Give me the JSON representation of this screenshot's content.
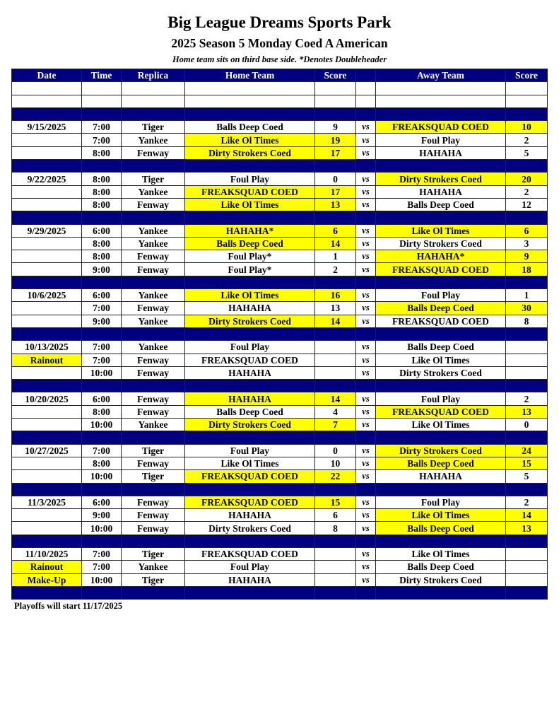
{
  "title": "Big League Dreams Sports Park",
  "subtitle": "2025 Season 5 Monday Coed A American",
  "note": "Home team sits on third base side.  *Denotes Doubleheader",
  "columns": [
    "Date",
    "Time",
    "Replica",
    "Home Team",
    "Score",
    "",
    "Away Team",
    "Score"
  ],
  "vs_label": "vs",
  "colors": {
    "header": "#000080",
    "highlight": "#ffff00"
  },
  "weeks": [
    {
      "games": [
        {
          "date": "9/15/2025",
          "time": "7:00",
          "field": "Tiger",
          "home": "Balls Deep Coed",
          "home_score": "9",
          "away": "FREAKSQUAD COED",
          "away_score": "10",
          "winner": "away"
        },
        {
          "date": "",
          "time": "7:00",
          "field": "Yankee",
          "home": "Like Ol Times",
          "home_score": "19",
          "away": "Foul Play",
          "away_score": "2",
          "winner": "home"
        },
        {
          "date": "",
          "time": "8:00",
          "field": "Fenway",
          "home": "Dirty Strokers Coed",
          "home_score": "17",
          "away": "HAHAHA",
          "away_score": "5",
          "winner": "home"
        }
      ]
    },
    {
      "games": [
        {
          "date": "9/22/2025",
          "time": "8:00",
          "field": "Tiger",
          "home": "Foul Play",
          "home_score": "0",
          "away": "Dirty Strokers Coed",
          "away_score": "20",
          "winner": "away"
        },
        {
          "date": "",
          "time": "8:00",
          "field": "Yankee",
          "home": "FREAKSQUAD COED",
          "home_score": "17",
          "away": "HAHAHA",
          "away_score": "2",
          "winner": "home"
        },
        {
          "date": "",
          "time": "8:00",
          "field": "Fenway",
          "home": "Like Ol Times",
          "home_score": "13",
          "away": "Balls Deep Coed",
          "away_score": "12",
          "winner": "home"
        }
      ]
    },
    {
      "games": [
        {
          "date": "9/29/2025",
          "time": "6:00",
          "field": "Yankee",
          "home": "HAHAHA*",
          "home_score": "6",
          "away": "Like Ol Times",
          "away_score": "6",
          "winner": "both"
        },
        {
          "date": "",
          "time": "8:00",
          "field": "Yankee",
          "home": "Balls Deep Coed",
          "home_score": "14",
          "away": "Dirty Strokers Coed",
          "away_score": "3",
          "winner": "home"
        },
        {
          "date": "",
          "time": "8:00",
          "field": "Fenway",
          "home": "Foul Play*",
          "home_score": "1",
          "away": "HAHAHA*",
          "away_score": "9",
          "winner": "away"
        },
        {
          "date": "",
          "time": "9:00",
          "field": "Fenway",
          "home": "Foul Play*",
          "home_score": "2",
          "away": "FREAKSQUAD COED",
          "away_score": "18",
          "winner": "away"
        }
      ]
    },
    {
      "games": [
        {
          "date": "10/6/2025",
          "time": "6:00",
          "field": "Yankee",
          "home": "Like Ol Times",
          "home_score": "16",
          "away": "Foul Play",
          "away_score": "1",
          "winner": "home"
        },
        {
          "date": "",
          "time": "7:00",
          "field": "Fenway",
          "home": "HAHAHA",
          "home_score": "13",
          "away": "Balls Deep Coed",
          "away_score": "30",
          "winner": "away"
        },
        {
          "date": "",
          "time": "9:00",
          "field": "Yankee",
          "home": "Dirty Strokers Coed",
          "home_score": "14",
          "away": "FREAKSQUAD COED",
          "away_score": "8",
          "winner": "home"
        }
      ]
    },
    {
      "games": [
        {
          "date": "10/13/2025",
          "time": "7:00",
          "field": "Yankee",
          "home": "Foul Play",
          "home_score": "",
          "away": "Balls Deep Coed",
          "away_score": "",
          "winner": ""
        },
        {
          "date": "Rainout",
          "date_highlight": true,
          "time": "7:00",
          "field": "Fenway",
          "home": "FREAKSQUAD COED",
          "home_score": "",
          "away": "Like Ol Times",
          "away_score": "",
          "winner": ""
        },
        {
          "date": "",
          "time": "10:00",
          "field": "Fenway",
          "home": "HAHAHA",
          "home_score": "",
          "away": "Dirty Strokers Coed",
          "away_score": "",
          "winner": ""
        }
      ]
    },
    {
      "games": [
        {
          "date": "10/20/2025",
          "time": "6:00",
          "field": "Fenway",
          "home": "HAHAHA",
          "home_score": "14",
          "away": "Foul Play",
          "away_score": "2",
          "winner": "home"
        },
        {
          "date": "",
          "time": "8:00",
          "field": "Fenway",
          "home": "Balls Deep Coed",
          "home_score": "4",
          "away": "FREAKSQUAD COED",
          "away_score": "13",
          "winner": "away"
        },
        {
          "date": "",
          "time": "10:00",
          "field": "Yankee",
          "home": "Dirty Strokers Coed",
          "home_score": "7",
          "away": "Like Ol Times",
          "away_score": "0",
          "winner": "home"
        }
      ]
    },
    {
      "games": [
        {
          "date": "10/27/2025",
          "time": "7:00",
          "field": "Tiger",
          "home": "Foul Play",
          "home_score": "0",
          "away": "Dirty Strokers Coed",
          "away_score": "24",
          "winner": "away"
        },
        {
          "date": "",
          "time": "8:00",
          "field": "Fenway",
          "home": "Like Ol Times",
          "home_score": "10",
          "away": "Balls Deep Coed",
          "away_score": "15",
          "winner": "away"
        },
        {
          "date": "",
          "time": "10:00",
          "field": "Tiger",
          "home": "FREAKSQUAD COED",
          "home_score": "22",
          "away": "HAHAHA",
          "away_score": "5",
          "winner": "home"
        }
      ]
    },
    {
      "games": [
        {
          "date": "11/3/2025",
          "time": "6:00",
          "field": "Fenway",
          "home": "FREAKSQUAD COED",
          "home_score": "15",
          "away": "Foul Play",
          "away_score": "2",
          "winner": "home"
        },
        {
          "date": "",
          "time": "9:00",
          "field": "Fenway",
          "home": "HAHAHA",
          "home_score": "6",
          "away": "Like Ol Times",
          "away_score": "14",
          "winner": "away"
        },
        {
          "date": "",
          "time": "10:00",
          "field": "Fenway",
          "home": "Dirty Strokers Coed",
          "home_score": "8",
          "away": "Balls Deep Coed",
          "away_score": "13",
          "winner": "away"
        }
      ]
    },
    {
      "games": [
        {
          "date": "11/10/2025",
          "time": "7:00",
          "field": "Tiger",
          "home": "FREAKSQUAD COED",
          "home_score": "",
          "away": "Like Ol Times",
          "away_score": "",
          "winner": ""
        },
        {
          "date": "Rainout",
          "date_highlight": true,
          "time": "7:00",
          "field": "Yankee",
          "home": "Foul Play",
          "home_score": "",
          "away": "Balls Deep Coed",
          "away_score": "",
          "winner": ""
        },
        {
          "date": "Make-Up",
          "date_highlight": true,
          "time": "10:00",
          "field": "Tiger",
          "home": "HAHAHA",
          "home_score": "",
          "away": "Dirty Strokers Coed",
          "away_score": "",
          "winner": ""
        }
      ]
    }
  ],
  "footer": "Playoffs will start 11/17/2025"
}
